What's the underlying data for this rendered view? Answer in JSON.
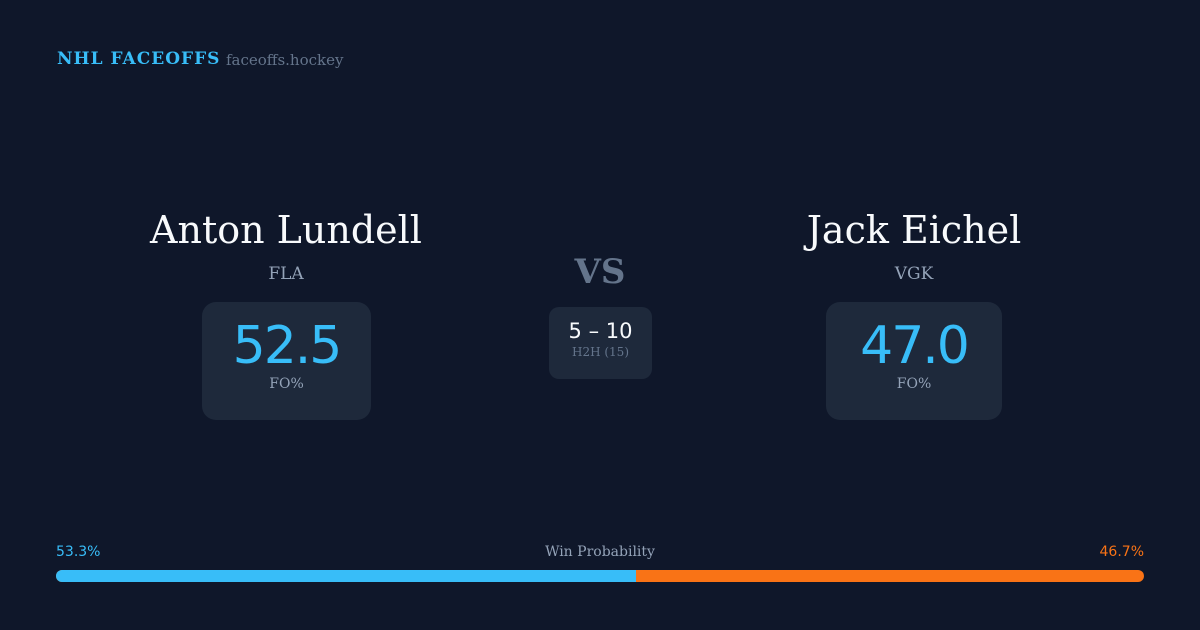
{
  "header": {
    "brand": "NHL FACEOFFS",
    "site": "faceoffs.hockey"
  },
  "left": {
    "name": "Anton Lundell",
    "team": "FLA",
    "fo_pct": "52.5",
    "fo_label": "FO%"
  },
  "right": {
    "name": "Jack Eichel",
    "team": "VGK",
    "fo_pct": "47.0",
    "fo_label": "FO%"
  },
  "vs": "VS",
  "h2h": {
    "score": "5 – 10",
    "label": "H2H (15)"
  },
  "win_probability": {
    "label": "Win Probability",
    "left": "53.3%",
    "right": "46.7%",
    "left_value": 53.3,
    "colors": {
      "left": "#38bdf8",
      "right": "#f97316"
    }
  }
}
